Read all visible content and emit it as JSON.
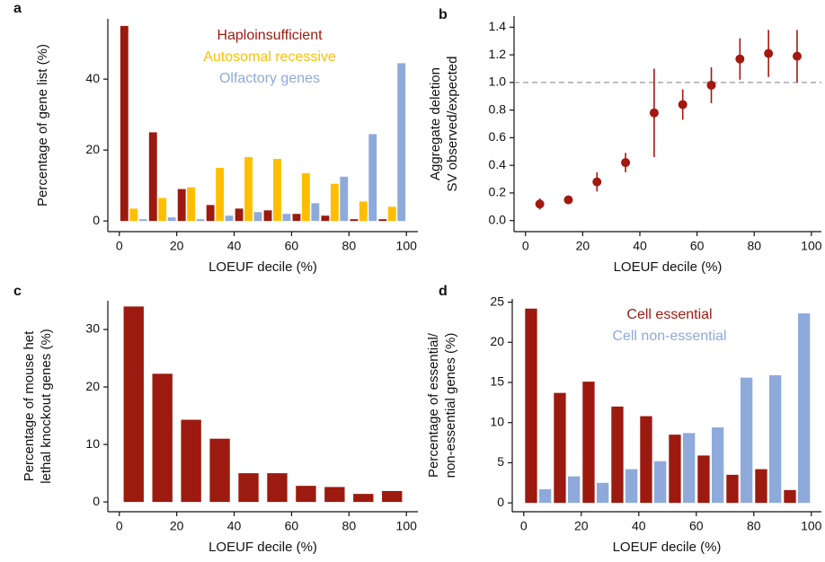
{
  "chart_data": [
    {
      "type": "bar",
      "panel": "a",
      "xlabel": "LOEUF decile (%)",
      "ylabel": [
        "Percentage of gene list (%)"
      ],
      "x": [
        5,
        15,
        25,
        35,
        45,
        55,
        65,
        75,
        85,
        95
      ],
      "series": [
        {
          "name": "Haploinsufficient",
          "color": "#9c1a0f",
          "values": [
            55,
            25,
            9,
            4.5,
            3.5,
            3,
            2,
            1.5,
            0.5,
            0.5
          ]
        },
        {
          "name": "Autosomal recessive",
          "color": "#ffbf00",
          "values": [
            3.5,
            6.5,
            9.5,
            15,
            18,
            17.5,
            13.5,
            10.5,
            5.5,
            4
          ]
        },
        {
          "name": "Olfactory genes",
          "color": "#8eaadb",
          "values": [
            0.5,
            1,
            0.5,
            1.5,
            2.5,
            2,
            5,
            12.5,
            24.5,
            44.5
          ]
        }
      ],
      "xlim": [
        -4,
        104
      ],
      "xticks": [
        0,
        20,
        40,
        60,
        80,
        100
      ],
      "ylim": [
        -3,
        57
      ],
      "yticks": [
        0,
        20,
        40
      ],
      "legend": "top"
    },
    {
      "type": "scatter",
      "panel": "b",
      "xlabel": "LOEUF decile (%)",
      "ylabel": [
        "Aggregate deletion",
        "SV observed/expected"
      ],
      "x": [
        5,
        15,
        25,
        35,
        45,
        55,
        65,
        75,
        85,
        95
      ],
      "values": [
        0.12,
        0.15,
        0.28,
        0.42,
        0.78,
        0.84,
        0.98,
        1.17,
        1.21,
        1.19
      ],
      "errors": [
        0.04,
        0.03,
        0.07,
        0.07,
        0.32,
        0.11,
        0.13,
        0.15,
        0.17,
        0.19
      ],
      "color": "#a3180f",
      "hline": 1,
      "xlim": [
        -4,
        103.5
      ],
      "xticks": [
        0,
        20,
        40,
        60,
        80,
        100
      ],
      "ylim": [
        -0.08,
        1.48
      ],
      "yticks": [
        {
          "value": 0,
          "label": "0.0"
        },
        0.2,
        0.4,
        0.6,
        0.8,
        {
          "value": 1,
          "label": "1.0"
        },
        1.2,
        1.4
      ]
    },
    {
      "type": "bar",
      "panel": "c",
      "xlabel": "LOEUF decile (%)",
      "ylabel": [
        "Percentage of mouse het",
        "lethal knockout genes (%)"
      ],
      "x": [
        5,
        15,
        25,
        35,
        45,
        55,
        65,
        75,
        85,
        95
      ],
      "series": [
        {
          "color": "#9c1a0f",
          "values": [
            34,
            22.3,
            14.3,
            11,
            5,
            5,
            2.8,
            2.6,
            1.4,
            1.9
          ]
        }
      ],
      "xlim": [
        -4,
        104
      ],
      "xticks": [
        0,
        20,
        40,
        60,
        80,
        100
      ],
      "ylim": [
        -1.7,
        35
      ],
      "yticks": [
        0,
        10,
        20,
        30
      ]
    },
    {
      "type": "bar",
      "panel": "d",
      "xlabel": "LOEUF decile (%)",
      "ylabel": [
        "Percentage of essential/",
        "non-essential genes (%)"
      ],
      "x": [
        5,
        15,
        25,
        35,
        45,
        55,
        65,
        75,
        85,
        95
      ],
      "series": [
        {
          "name": "Cell essential",
          "color": "#9c1a0f",
          "values": [
            24.2,
            13.7,
            15.1,
            12,
            10.8,
            8.5,
            5.9,
            3.5,
            4.2,
            1.6
          ]
        },
        {
          "name": "Cell non-essential",
          "color": "#8eaadb",
          "values": [
            1.7,
            3.3,
            2.5,
            4.2,
            5.2,
            8.7,
            9.4,
            15.6,
            15.9,
            23.6
          ]
        }
      ],
      "xlim": [
        -4,
        103.5
      ],
      "xticks": [
        0,
        20,
        40,
        60,
        80,
        100
      ],
      "ylim": [
        -1.1,
        25.4
      ],
      "yticks": [
        0,
        5,
        10,
        15,
        20,
        25
      ],
      "legend": "top"
    }
  ]
}
